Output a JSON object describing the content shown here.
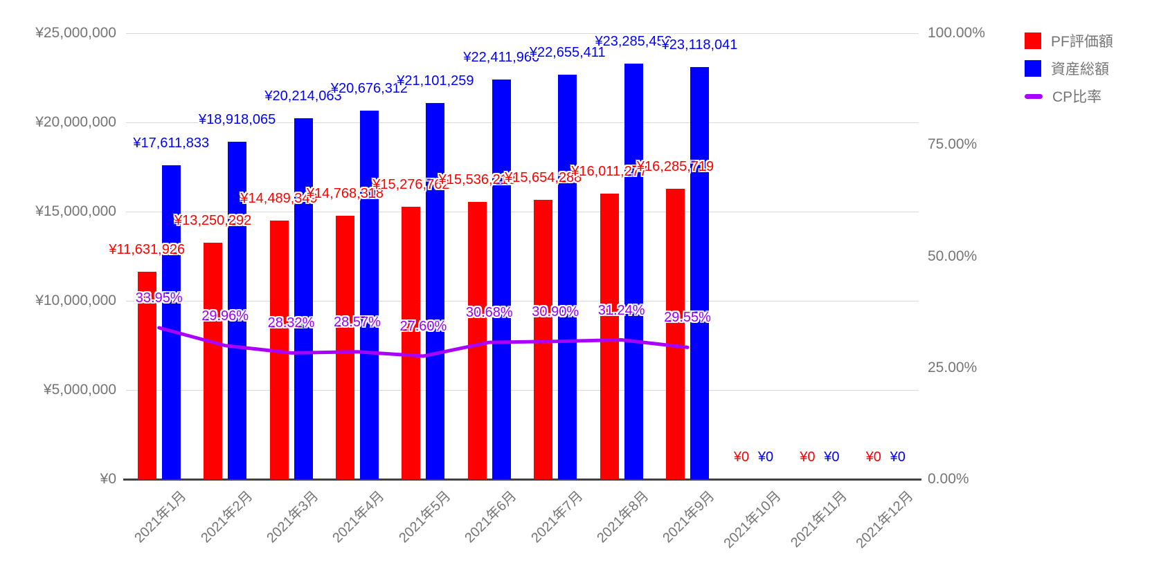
{
  "chart_data": {
    "type": "bar",
    "subtype": "combo-bar-line-dual-axis",
    "title": "",
    "categories": [
      "2021年1月",
      "2021年2月",
      "2021年3月",
      "2021年4月",
      "2021年5月",
      "2021年6月",
      "2021年7月",
      "2021年8月",
      "2021年9月",
      "2021年10月",
      "2021年11月",
      "2021年12月"
    ],
    "series": [
      {
        "name": "PF評価額",
        "type": "bar",
        "axis": "left",
        "color": "#ff0000",
        "values": [
          11631926,
          13250292,
          14489349,
          14768318,
          15276762,
          15536213,
          15654288,
          16011277,
          16285719,
          0,
          0,
          0
        ],
        "labels": [
          "¥11,631,926",
          "¥13,250,292",
          "¥14,489,349",
          "¥14,768,318",
          "¥15,276,762",
          "¥15,536,213",
          "¥15,654,288",
          "¥16,011,277",
          "¥16,285,719",
          "¥0",
          "¥0",
          "¥0"
        ]
      },
      {
        "name": "資産総額",
        "type": "bar",
        "axis": "left",
        "color": "#0000ff",
        "values": [
          17611833,
          18918065,
          20214063,
          20676312,
          21101259,
          22411966,
          22655411,
          23285452,
          23118041,
          0,
          0,
          0
        ],
        "labels": [
          "¥17,611,833",
          "¥18,918,065",
          "¥20,214,063",
          "¥20,676,312",
          "¥21,101,259",
          "¥22,411,966",
          "¥22,655,411",
          "¥23,285,452",
          "¥23,118,041",
          "¥0",
          "¥0",
          "¥0"
        ]
      },
      {
        "name": "CP比率",
        "type": "line",
        "axis": "right",
        "color": "#aa00ff",
        "values": [
          33.95,
          29.96,
          28.32,
          28.57,
          27.6,
          30.68,
          30.9,
          31.24,
          29.55,
          null,
          null,
          null
        ],
        "labels": [
          "33.95%",
          "29.96%",
          "28.32%",
          "28.57%",
          "27.60%",
          "30.68%",
          "30.90%",
          "31.24%",
          "29.55%",
          null,
          null,
          null
        ]
      }
    ],
    "left_axis": {
      "min": 0,
      "max": 25000000,
      "tick_values": [
        0,
        5000000,
        10000000,
        15000000,
        20000000,
        25000000
      ],
      "tick_labels": [
        "¥0",
        "¥5,000,000",
        "¥10,000,000",
        "¥15,000,000",
        "¥20,000,000",
        "¥25,000,000"
      ]
    },
    "right_axis": {
      "min": 0,
      "max": 100,
      "tick_values": [
        0,
        25,
        50,
        75,
        100
      ],
      "tick_labels": [
        "0.00%",
        "25.00%",
        "50.00%",
        "75.00%",
        "100.00%"
      ]
    },
    "grid": true,
    "legend_position": "top-right",
    "annotations_halo_color": "#ffffff"
  }
}
